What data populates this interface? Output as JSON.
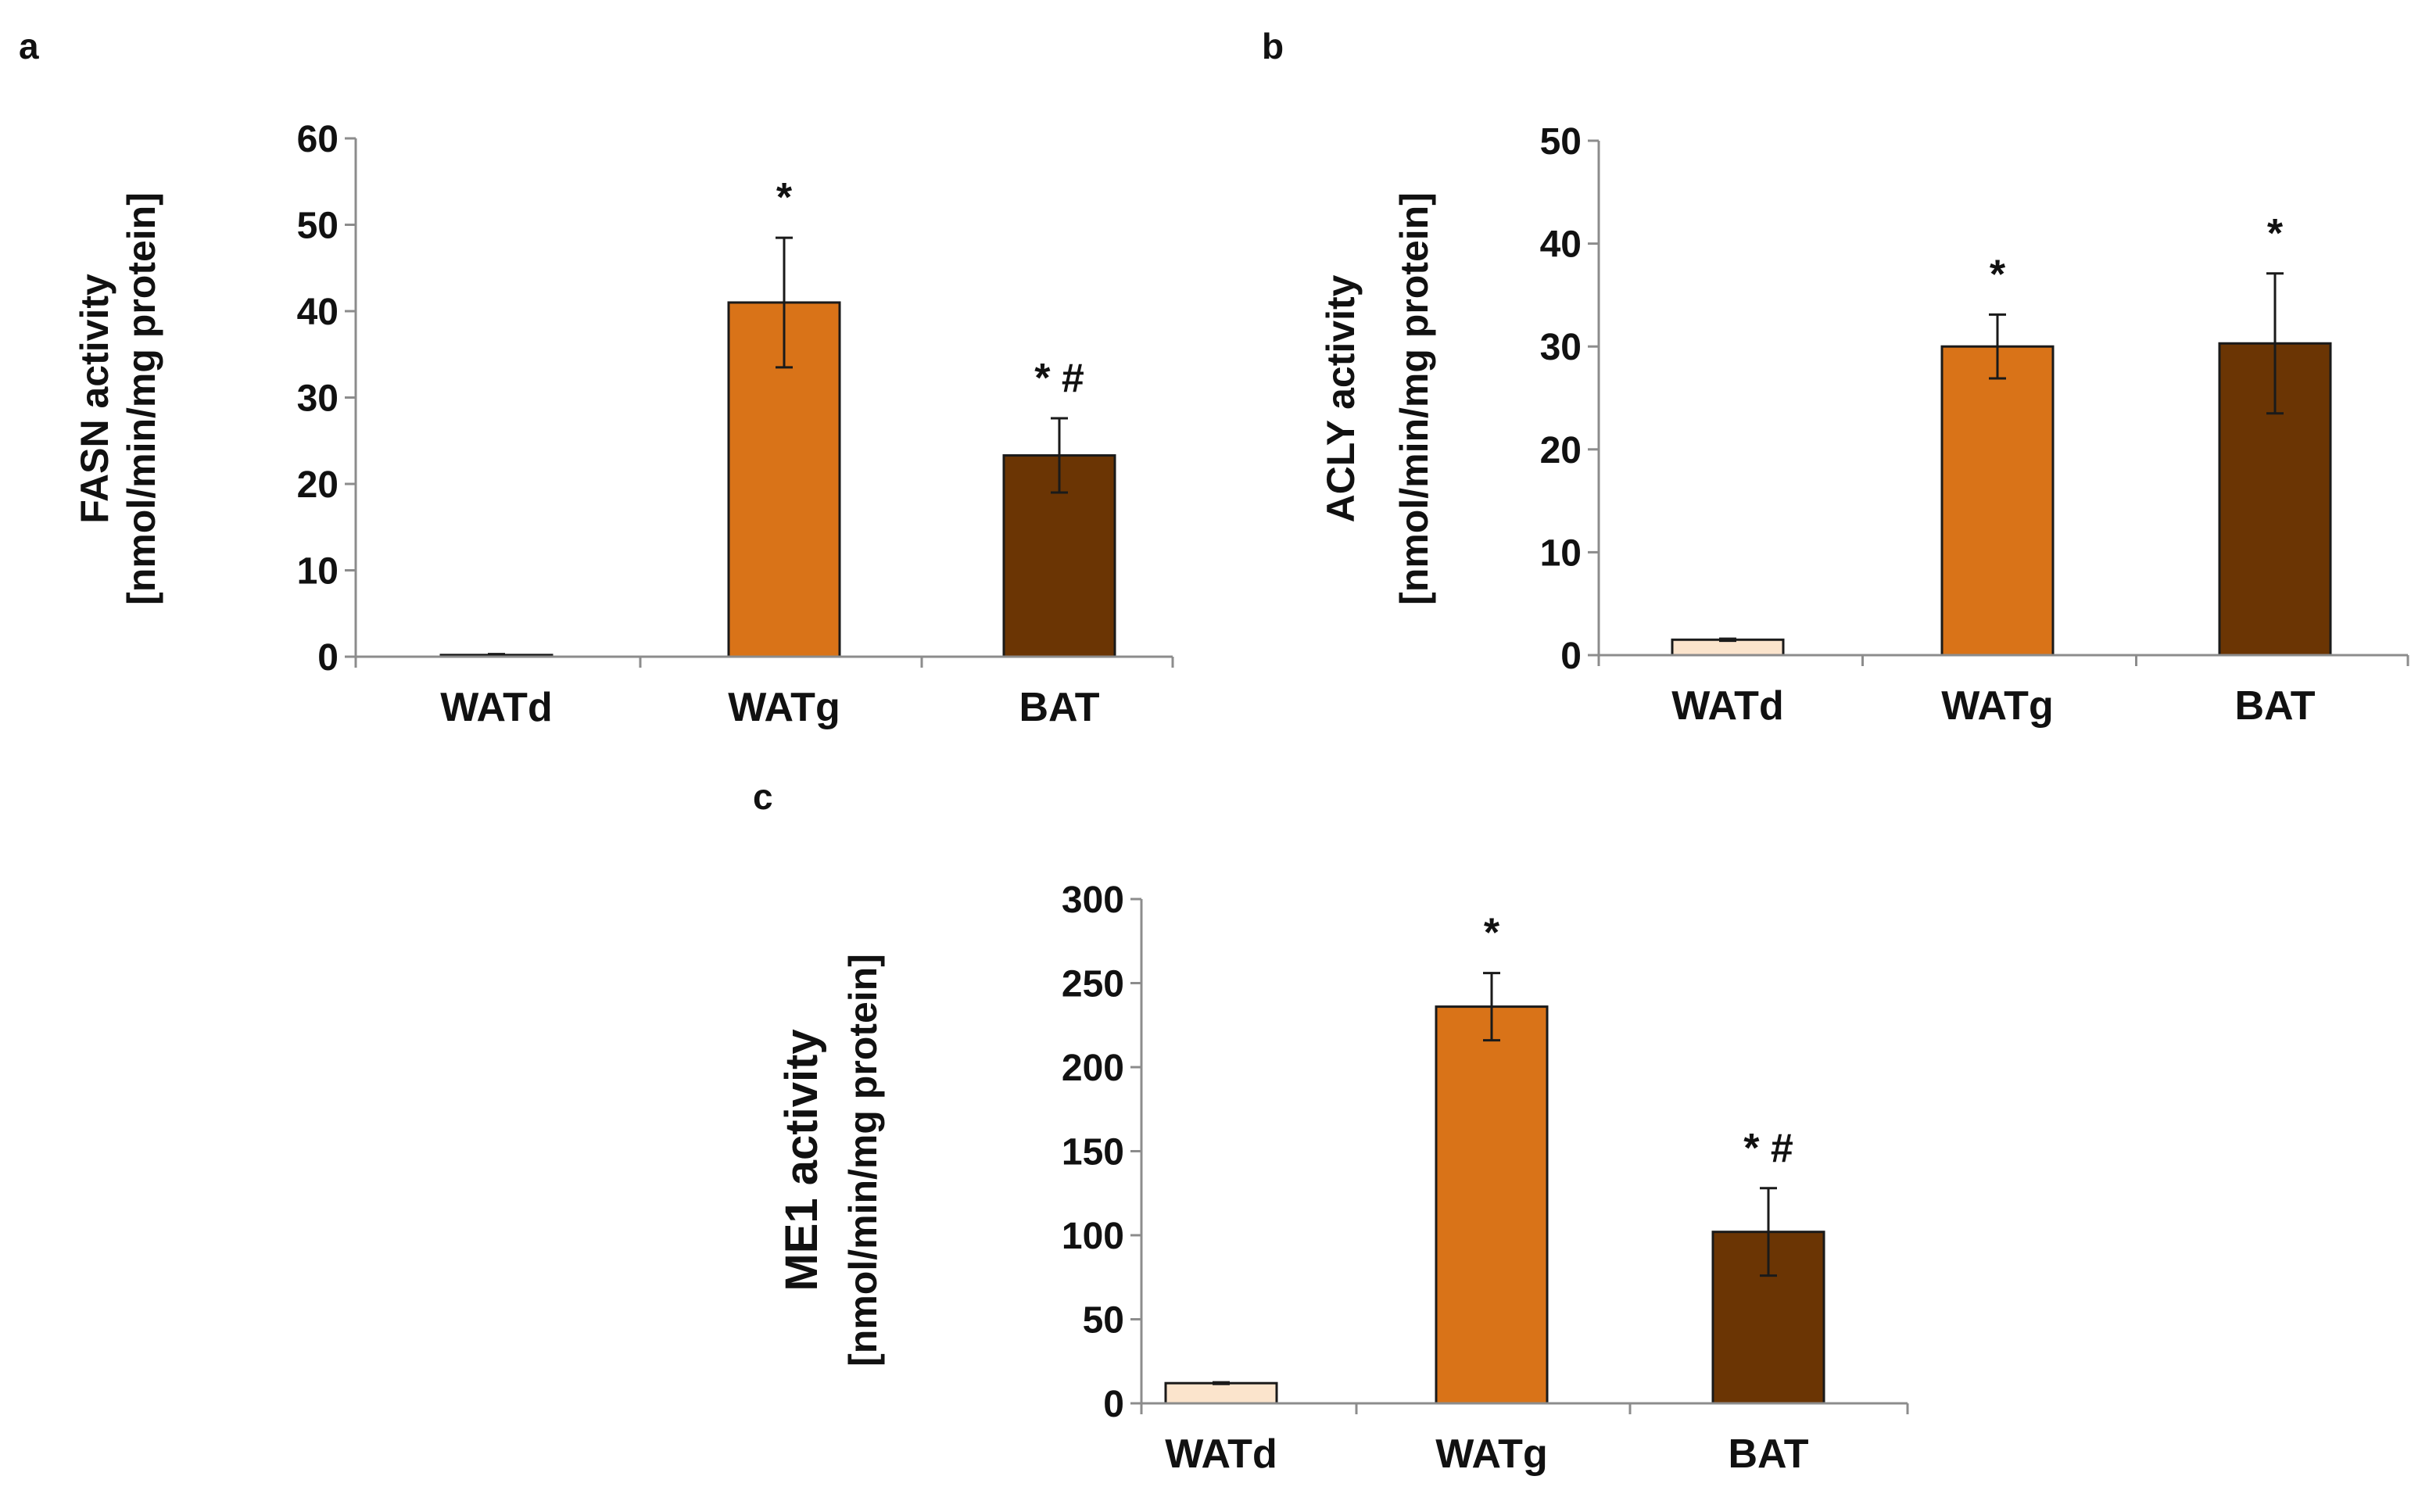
{
  "chart_data": [
    {
      "type": "bar",
      "panel": "a",
      "ylabel_line1": "FASN activity",
      "ylabel_line2": "[nmol/min/mg protein]",
      "ylim": [
        0,
        60
      ],
      "yticks": [
        0,
        10,
        20,
        30,
        40,
        50,
        60
      ],
      "categories": [
        "WATd",
        "WATg",
        "BAT"
      ],
      "values": [
        0.2,
        41,
        23.3
      ],
      "errors": [
        0.1,
        7.5,
        4.3
      ],
      "colors": [
        "#fbe4cc",
        "#d97318",
        "#6b3504"
      ],
      "annotations": [
        "",
        "*",
        "* #"
      ]
    },
    {
      "type": "bar",
      "panel": "b",
      "ylabel_line1": "ACLY activity",
      "ylabel_line2": "[nmol/min/mg protein]",
      "ylim": [
        0,
        50
      ],
      "yticks": [
        0,
        10,
        20,
        30,
        40,
        50
      ],
      "categories": [
        "WATd",
        "WATg",
        "BAT"
      ],
      "values": [
        1.5,
        30,
        30.3
      ],
      "errors": [
        0.1,
        3.1,
        6.8
      ],
      "colors": [
        "#fbe4cc",
        "#d97318",
        "#6b3504"
      ],
      "annotations": [
        "",
        "*",
        "*"
      ]
    },
    {
      "type": "bar",
      "panel": "c",
      "ylabel_line1": "ME1 activity",
      "ylabel_line2": "[nmol/min/mg protein]",
      "ylim": [
        0,
        300
      ],
      "yticks": [
        0,
        50,
        100,
        150,
        200,
        250,
        300
      ],
      "categories": [
        "WATd",
        "WATg",
        "BAT"
      ],
      "values": [
        12,
        236,
        102
      ],
      "errors": [
        0.5,
        20,
        26
      ],
      "colors": [
        "#fbe4cc",
        "#d97318",
        "#6b3504"
      ],
      "annotations": [
        "",
        "*",
        "* #"
      ]
    }
  ]
}
